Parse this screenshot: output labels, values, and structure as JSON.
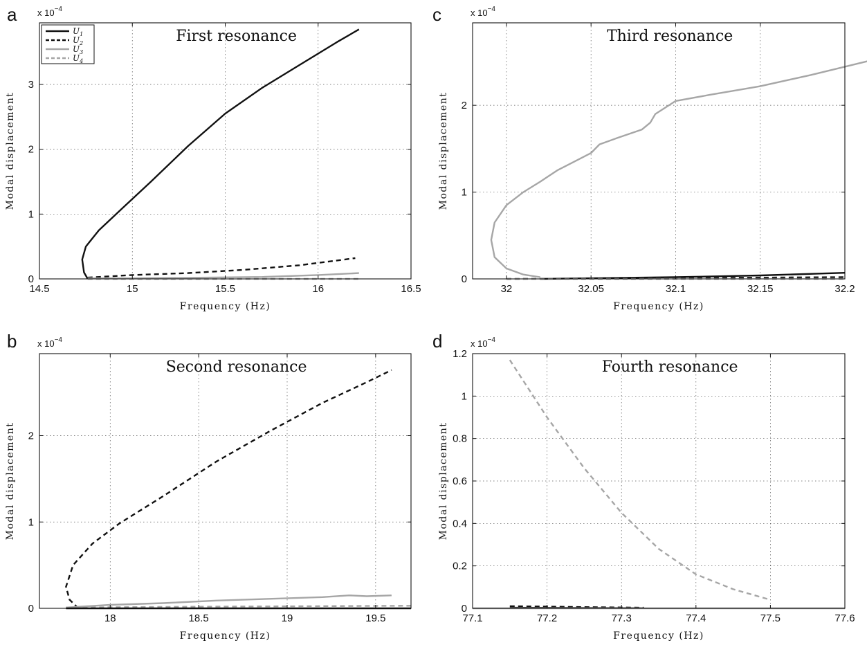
{
  "chart_data": [
    {
      "panel": "a",
      "type": "line",
      "title": "First resonance",
      "xlabel": "Frequency (Hz)",
      "ylabel": "Modal displacement",
      "y_exponent": "x 10",
      "y_exponent_power": "−4",
      "xlim": [
        14.5,
        16.5
      ],
      "ylim": [
        0,
        3.95
      ],
      "xticks": [
        14.5,
        15,
        15.5,
        16,
        16.5
      ],
      "xtick_labels": [
        "14.5",
        "15",
        "15.5",
        "16",
        "16.5"
      ],
      "yticks": [
        0,
        1,
        2,
        3
      ],
      "ytick_labels": [
        "0",
        "1",
        "2",
        "3"
      ],
      "grid": true,
      "legend": {
        "placement": "top-left",
        "entries": [
          {
            "base": "U",
            "sub": "1",
            "color": "#111111",
            "dash": "solid"
          },
          {
            "base": "U",
            "sub": "2",
            "color": "#111111",
            "dash": "dashed"
          },
          {
            "base": "U",
            "sub": "3",
            "color": "#a6a6a6",
            "dash": "solid"
          },
          {
            "base": "U",
            "sub": "4",
            "color": "#a6a6a6",
            "dash": "dashed"
          }
        ]
      },
      "series": [
        {
          "color": "#111111",
          "dash": "solid",
          "x": [
            14.76,
            14.74,
            14.73,
            14.75,
            14.82,
            14.95,
            15.1,
            15.3,
            15.5,
            15.7,
            15.9,
            16.1,
            16.22
          ],
          "y": [
            0,
            0.1,
            0.3,
            0.5,
            0.75,
            1.1,
            1.5,
            2.05,
            2.55,
            2.95,
            3.3,
            3.65,
            3.85
          ]
        },
        {
          "color": "#111111",
          "dash": "dashed",
          "x": [
            14.76,
            15.0,
            15.3,
            15.6,
            15.9,
            16.2
          ],
          "y": [
            0.02,
            0.06,
            0.09,
            0.14,
            0.21,
            0.32
          ]
        },
        {
          "color": "#a6a6a6",
          "dash": "solid",
          "x": [
            14.76,
            15.0,
            15.4,
            15.7,
            16.0,
            16.22
          ],
          "y": [
            0.01,
            0.01,
            0.02,
            0.03,
            0.06,
            0.09
          ]
        },
        {
          "color": "#a6a6a6",
          "dash": "dashed",
          "x": [
            14.76,
            15.5,
            16.22
          ],
          "y": [
            0.0,
            0.0,
            0.0
          ]
        }
      ]
    },
    {
      "panel": "b",
      "type": "line",
      "title": "Second resonance",
      "xlabel": "Frequency (Hz)",
      "ylabel": "Modal displacement",
      "y_exponent": "x 10",
      "y_exponent_power": "−4",
      "xlim": [
        17.6,
        19.7
      ],
      "ylim": [
        0,
        2.95
      ],
      "xticks": [
        18,
        18.5,
        19,
        19.5
      ],
      "xtick_labels": [
        "18",
        "18.5",
        "19",
        "19.5"
      ],
      "yticks": [
        0,
        1,
        2
      ],
      "ytick_labels": [
        "0",
        "1",
        "2"
      ],
      "grid": true,
      "series": [
        {
          "color": "#111111",
          "dash": "dashed",
          "x": [
            17.82,
            17.77,
            17.75,
            17.79,
            17.9,
            18.05,
            18.3,
            18.6,
            18.9,
            19.2,
            19.45,
            19.59
          ],
          "y": [
            0,
            0.1,
            0.25,
            0.5,
            0.75,
            0.98,
            1.3,
            1.7,
            2.05,
            2.38,
            2.62,
            2.76
          ]
        },
        {
          "color": "#a6a6a6",
          "dash": "solid",
          "x": [
            17.75,
            18.0,
            18.3,
            18.6,
            18.9,
            19.2,
            19.35,
            19.45,
            19.59
          ],
          "y": [
            0.01,
            0.04,
            0.06,
            0.09,
            0.11,
            0.13,
            0.15,
            0.14,
            0.15
          ]
        },
        {
          "color": "#a6a6a6",
          "dash": "dashed",
          "x": [
            17.75,
            18.6,
            19.7
          ],
          "y": [
            0.01,
            0.02,
            0.03
          ]
        },
        {
          "color": "#111111",
          "dash": "solid",
          "x": [
            17.75,
            18.6,
            19.7
          ],
          "y": [
            0.0,
            0.0,
            0.0
          ]
        }
      ]
    },
    {
      "panel": "c",
      "type": "line",
      "title": "Third resonance",
      "xlabel": "Frequency (Hz)",
      "ylabel": "Modal displacement",
      "y_exponent": "x 10",
      "y_exponent_power": "−4",
      "xlim": [
        31.98,
        32.2
      ],
      "ylim": [
        0,
        2.95
      ],
      "xticks": [
        32,
        32.05,
        32.1,
        32.15,
        32.2
      ],
      "xtick_labels": [
        "32",
        "32.05",
        "32.1",
        "32.15",
        "32.2"
      ],
      "yticks": [
        0,
        1,
        2
      ],
      "ytick_labels": [
        "0",
        "1",
        "2"
      ],
      "grid": true,
      "series": [
        {
          "color": "#a6a6a6",
          "dash": "solid",
          "x": [
            32.02,
            32.01,
            32.0,
            31.993,
            31.991,
            31.993,
            32.0,
            32.01,
            32.02,
            32.03,
            32.04,
            32.05,
            32.055,
            32.065,
            32.08,
            32.085,
            32.088,
            32.1,
            32.12,
            32.15,
            32.18,
            32.218
          ],
          "y": [
            0.02,
            0.05,
            0.12,
            0.25,
            0.45,
            0.65,
            0.85,
            1.0,
            1.12,
            1.25,
            1.35,
            1.45,
            1.55,
            1.62,
            1.72,
            1.8,
            1.9,
            2.05,
            2.12,
            2.22,
            2.35,
            2.53
          ]
        },
        {
          "color": "#111111",
          "dash": "solid",
          "x": [
            32.02,
            32.1,
            32.15,
            32.2
          ],
          "y": [
            0.0,
            0.02,
            0.04,
            0.07
          ]
        },
        {
          "color": "#111111",
          "dash": "dashed",
          "x": [
            32.0,
            32.1,
            32.2
          ],
          "y": [
            0.0,
            0.01,
            0.02
          ]
        },
        {
          "color": "#a6a6a6",
          "dash": "dashed",
          "x": [
            32.0,
            32.1,
            32.2
          ],
          "y": [
            0.0,
            0.0,
            0.0
          ]
        }
      ]
    },
    {
      "panel": "d",
      "type": "line",
      "title": "Fourth resonance",
      "xlabel": "Frequency (Hz)",
      "ylabel": "Modal displacement",
      "y_exponent": "x 10",
      "y_exponent_power": "−4",
      "xlim": [
        77.1,
        77.6
      ],
      "ylim": [
        0,
        1.2
      ],
      "xticks": [
        77.1,
        77.2,
        77.3,
        77.4,
        77.5,
        77.6
      ],
      "xtick_labels": [
        "77.1",
        "77.2",
        "77.3",
        "77.4",
        "77.5",
        "77.6"
      ],
      "yticks": [
        0,
        0.2,
        0.4,
        0.6,
        0.8,
        1,
        1.2
      ],
      "ytick_labels": [
        "0",
        "0.2",
        "0.4",
        "0.6",
        "0.8",
        "1",
        "1.2"
      ],
      "grid": true,
      "series": [
        {
          "color": "#a6a6a6",
          "dash": "dashed",
          "x": [
            77.15,
            77.2,
            77.25,
            77.3,
            77.35,
            77.4,
            77.45,
            77.5
          ],
          "y": [
            1.17,
            0.9,
            0.66,
            0.45,
            0.28,
            0.16,
            0.09,
            0.04
          ]
        },
        {
          "color": "#111111",
          "dash": "dashed",
          "x": [
            77.15,
            77.2,
            77.25,
            77.3,
            77.33
          ],
          "y": [
            0.01,
            0.008,
            0.006,
            0.004,
            0.003
          ]
        },
        {
          "color": "#111111",
          "dash": "solid",
          "x": [
            77.15,
            77.25,
            77.33
          ],
          "y": [
            0.003,
            0.002,
            0.001
          ]
        },
        {
          "color": "#a6a6a6",
          "dash": "solid",
          "x": [
            77.1,
            77.3,
            77.6
          ],
          "y": [
            0.0,
            0.0,
            0.0
          ]
        }
      ]
    }
  ]
}
